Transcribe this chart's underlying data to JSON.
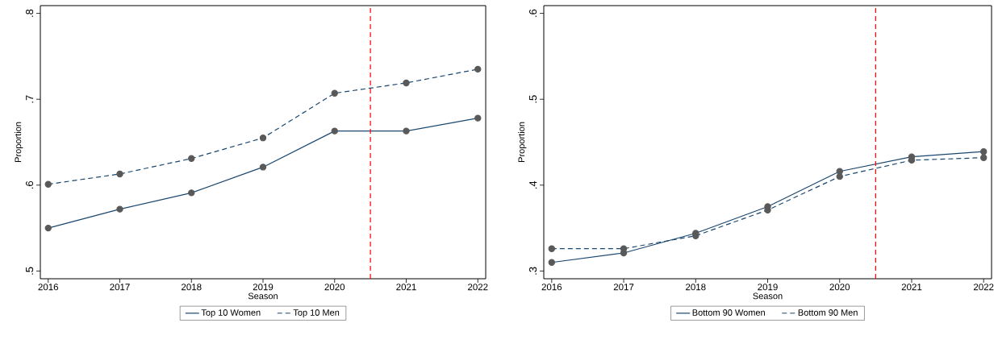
{
  "chart_data": [
    {
      "type": "line",
      "xlabel": "Season",
      "ylabel": "Proportion",
      "x": [
        2016,
        2017,
        2018,
        2019,
        2020,
        2021,
        2022
      ],
      "xlim": [
        2015.89,
        2022.11
      ],
      "ylim": [
        0.491,
        0.809
      ],
      "xticks": [
        2016,
        2017,
        2018,
        2019,
        2020,
        2021,
        2022
      ],
      "yticks": [
        {
          "value": 0.5,
          "label": ".5"
        },
        {
          "value": 0.6,
          "label": ".6"
        },
        {
          "value": 0.7,
          "label": ".7"
        },
        {
          "value": 0.8,
          "label": ".8"
        }
      ],
      "marker": "circle",
      "legend": "bottom",
      "ref_lines": [
        {
          "axis": "x",
          "value": 2020.5,
          "color": "#ff0000",
          "line_style": "dashed"
        }
      ],
      "series": [
        {
          "name": "Top 10 Women",
          "color": "#1a476f",
          "line_style": "solid",
          "values": [
            0.55,
            0.572,
            0.591,
            0.621,
            0.663,
            0.663,
            0.678
          ]
        },
        {
          "name": "Top 10 Men",
          "color": "#1a476f",
          "line_style": "dashed",
          "values": [
            0.601,
            0.613,
            0.631,
            0.655,
            0.707,
            0.719,
            0.735
          ]
        }
      ]
    },
    {
      "type": "line",
      "xlabel": "Season",
      "ylabel": "Proportion",
      "x": [
        2016,
        2017,
        2018,
        2019,
        2020,
        2021,
        2022
      ],
      "xlim": [
        2015.89,
        2022.11
      ],
      "ylim": [
        0.291,
        0.609
      ],
      "xticks": [
        2016,
        2017,
        2018,
        2019,
        2020,
        2021,
        2022
      ],
      "yticks": [
        {
          "value": 0.3,
          "label": ".3"
        },
        {
          "value": 0.4,
          "label": ".4"
        },
        {
          "value": 0.5,
          "label": ".5"
        },
        {
          "value": 0.6,
          "label": ".6"
        }
      ],
      "marker": "circle",
      "legend": "bottom",
      "ref_lines": [
        {
          "axis": "x",
          "value": 2020.5,
          "color": "#ff0000",
          "line_style": "dashed"
        }
      ],
      "series": [
        {
          "name": "Bottom 90 Women",
          "color": "#1a476f",
          "line_style": "solid",
          "values": [
            0.31,
            0.321,
            0.344,
            0.375,
            0.416,
            0.433,
            0.439
          ]
        },
        {
          "name": "Bottom 90 Men",
          "color": "#1a476f",
          "line_style": "dashed",
          "values": [
            0.326,
            0.326,
            0.341,
            0.371,
            0.41,
            0.429,
            0.432
          ]
        }
      ]
    }
  ]
}
